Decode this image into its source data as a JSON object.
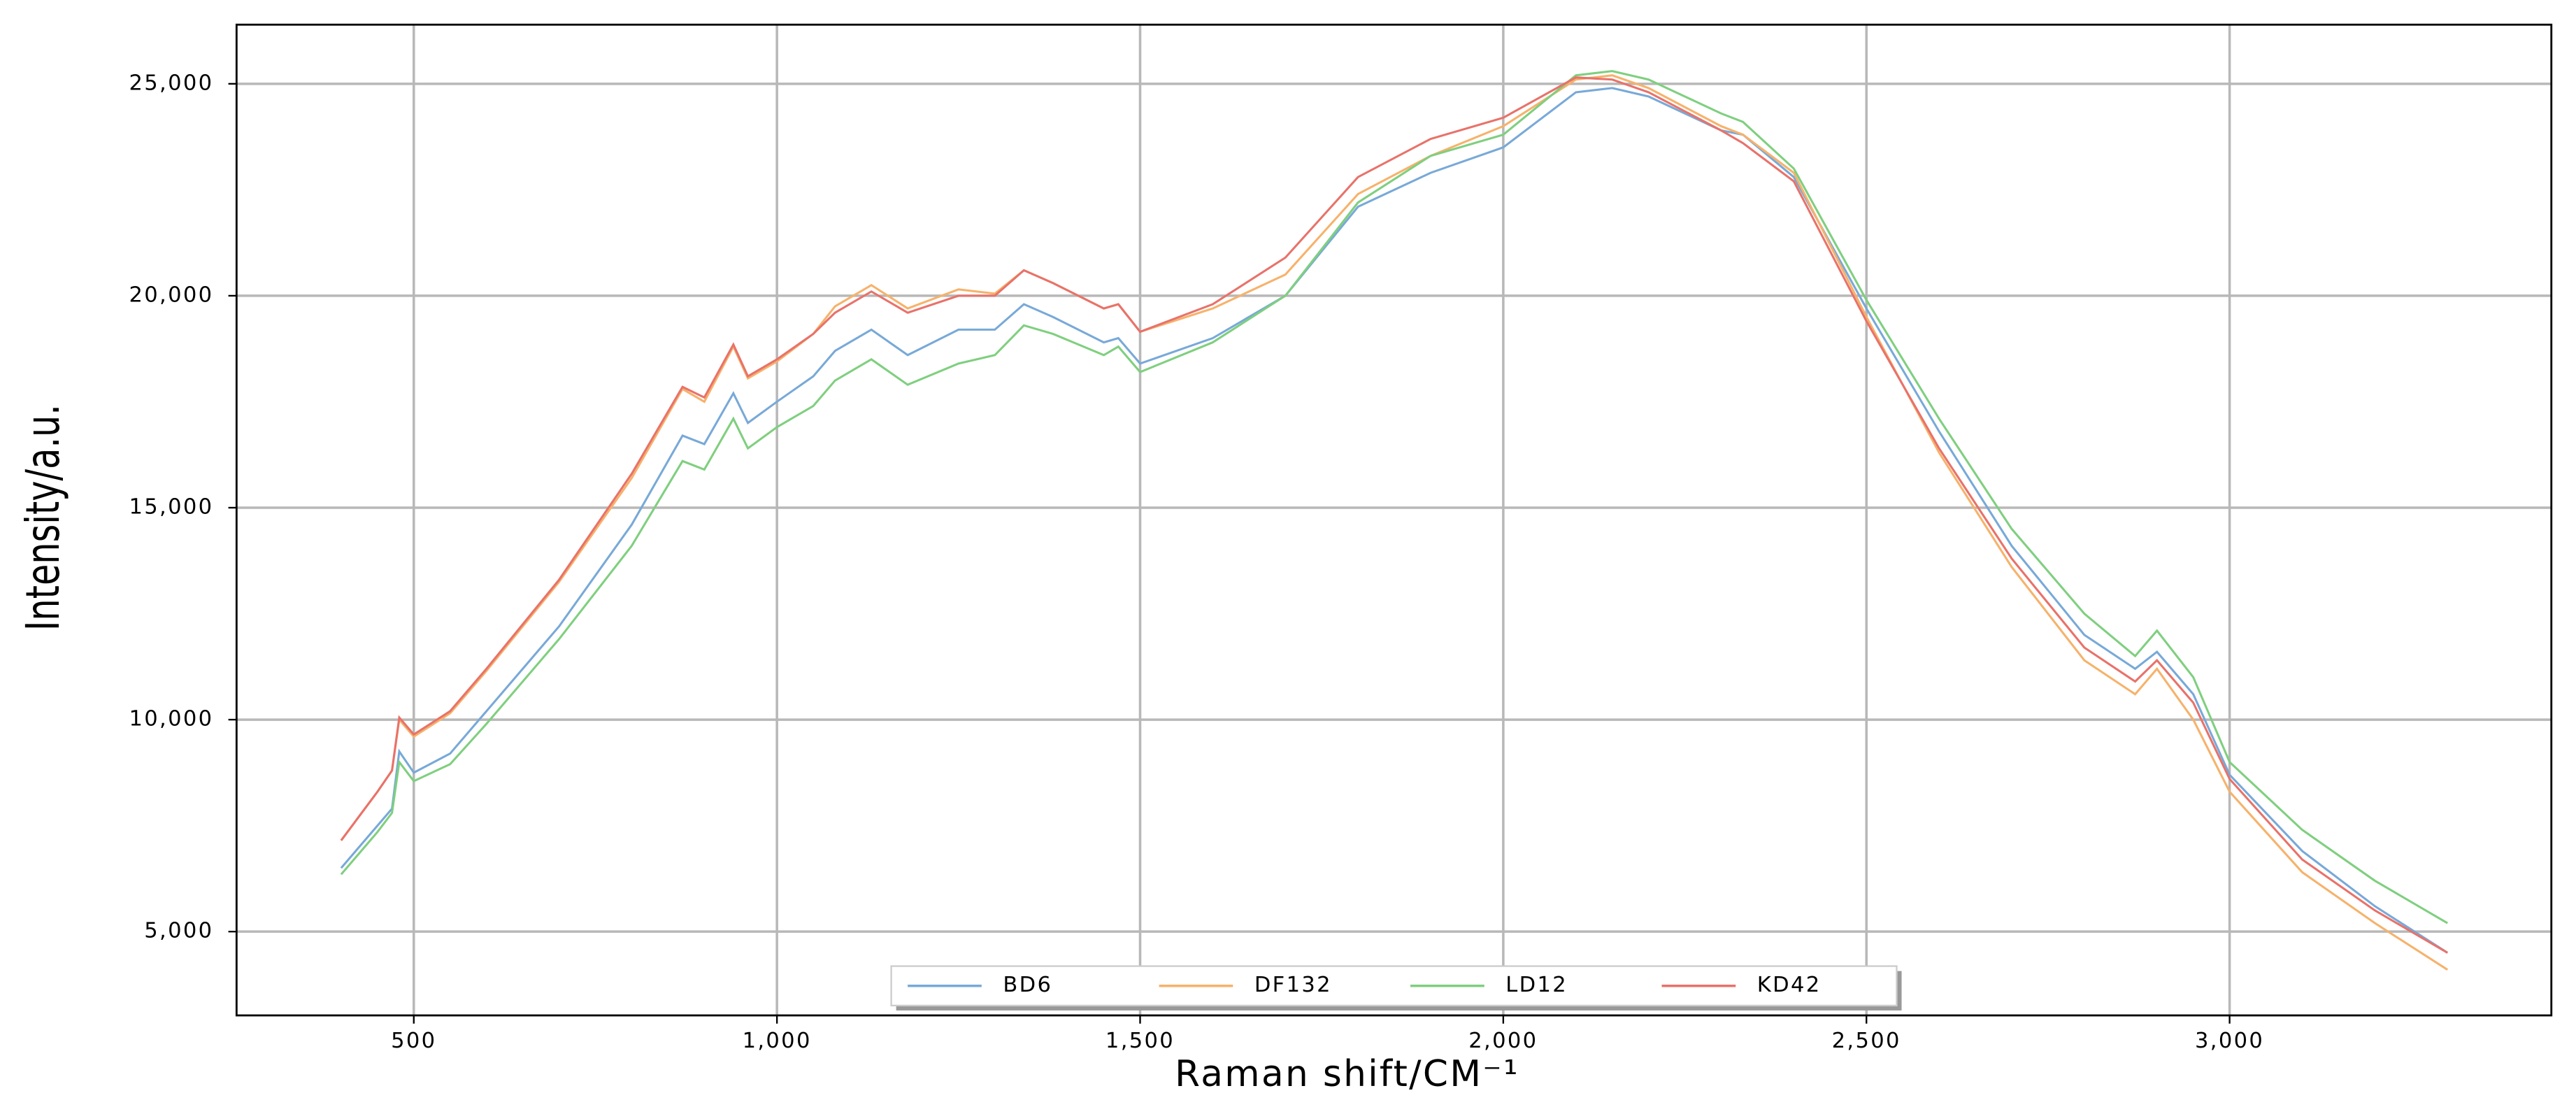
{
  "chart_data": {
    "type": "line",
    "x_label": "Raman shift/CM⁻¹",
    "y_label": "Intensity/a.u.",
    "x": [
      400,
      450,
      470,
      480,
      500,
      550,
      600,
      700,
      800,
      870,
      900,
      940,
      960,
      1000,
      1050,
      1080,
      1130,
      1180,
      1250,
      1300,
      1340,
      1380,
      1450,
      1470,
      1500,
      1600,
      1700,
      1800,
      1900,
      2000,
      2100,
      2150,
      2200,
      2300,
      2330,
      2400,
      2500,
      2600,
      2700,
      2800,
      2870,
      2900,
      2950,
      3000,
      3100,
      3200,
      3300
    ],
    "series": [
      {
        "name": "BD6",
        "color": "#78a9d8",
        "values": [
          6500,
          7500,
          7900,
          9250,
          8750,
          9200,
          10200,
          12200,
          14600,
          16700,
          16500,
          17700,
          17000,
          17500,
          18100,
          18700,
          19200,
          18600,
          19200,
          19200,
          19800,
          19500,
          18900,
          19000,
          18400,
          19000,
          20000,
          22100,
          22900,
          23500,
          24800,
          24900,
          24700,
          23900,
          23800,
          22800,
          19700,
          16800,
          14100,
          12000,
          11200,
          11600,
          10600,
          8700,
          6900,
          5600,
          4500
        ]
      },
      {
        "name": "DF132",
        "color": "#f6b26b",
        "values": [
          7150,
          8300,
          8800,
          10000,
          9600,
          10150,
          11150,
          13250,
          15700,
          17800,
          17500,
          18800,
          18050,
          18450,
          19100,
          19750,
          20250,
          19700,
          20150,
          20050,
          20600,
          20300,
          19700,
          19800,
          19150,
          19700,
          20500,
          22400,
          23300,
          24000,
          25100,
          25200,
          24900,
          24000,
          23800,
          22900,
          19500,
          16300,
          13600,
          11400,
          10600,
          11200,
          10000,
          8300,
          6400,
          5200,
          4100
        ]
      },
      {
        "name": "LD12",
        "color": "#7fcf7f",
        "values": [
          6350,
          7350,
          7800,
          9000,
          8550,
          8950,
          9900,
          11900,
          14100,
          16100,
          15900,
          17100,
          16400,
          16900,
          17400,
          18000,
          18500,
          17900,
          18400,
          18600,
          19300,
          19100,
          18600,
          18800,
          18200,
          18900,
          20000,
          22200,
          23300,
          23800,
          25200,
          25300,
          25100,
          24300,
          24100,
          23000,
          19900,
          17100,
          14500,
          12500,
          11500,
          12100,
          11000,
          9000,
          7400,
          6200,
          5200
        ]
      },
      {
        "name": "KD42",
        "color": "#e8726a",
        "values": [
          7150,
          8300,
          8800,
          10050,
          9650,
          10200,
          11200,
          13300,
          15800,
          17850,
          17600,
          18850,
          18100,
          18500,
          19100,
          19600,
          20100,
          19600,
          20000,
          20000,
          20600,
          20300,
          19700,
          19800,
          19150,
          19800,
          20900,
          22800,
          23700,
          24200,
          25150,
          25100,
          24800,
          23900,
          23600,
          22700,
          19400,
          16400,
          13800,
          11700,
          10900,
          11400,
          10400,
          8600,
          6700,
          5500,
          4500
        ]
      }
    ],
    "xlim": [
      256,
      3443
    ],
    "ylim": [
      3023,
      26395
    ],
    "xticks": [
      500,
      {
        "value": 1000,
        "label": "1,000"
      },
      {
        "value": 1500,
        "label": "1,500"
      },
      {
        "value": 2000,
        "label": "2,000"
      },
      {
        "value": 2500,
        "label": "2,500"
      },
      {
        "value": 3000,
        "label": "3,000"
      }
    ],
    "yticks": [
      {
        "value": 5000,
        "label": "5,000"
      },
      {
        "value": 10000,
        "label": "10,000"
      },
      {
        "value": 15000,
        "label": "15,000"
      },
      {
        "value": 20000,
        "label": "20,000"
      },
      {
        "value": 25000,
        "label": "25,000"
      }
    ],
    "grid": true,
    "legend": "lower center"
  }
}
